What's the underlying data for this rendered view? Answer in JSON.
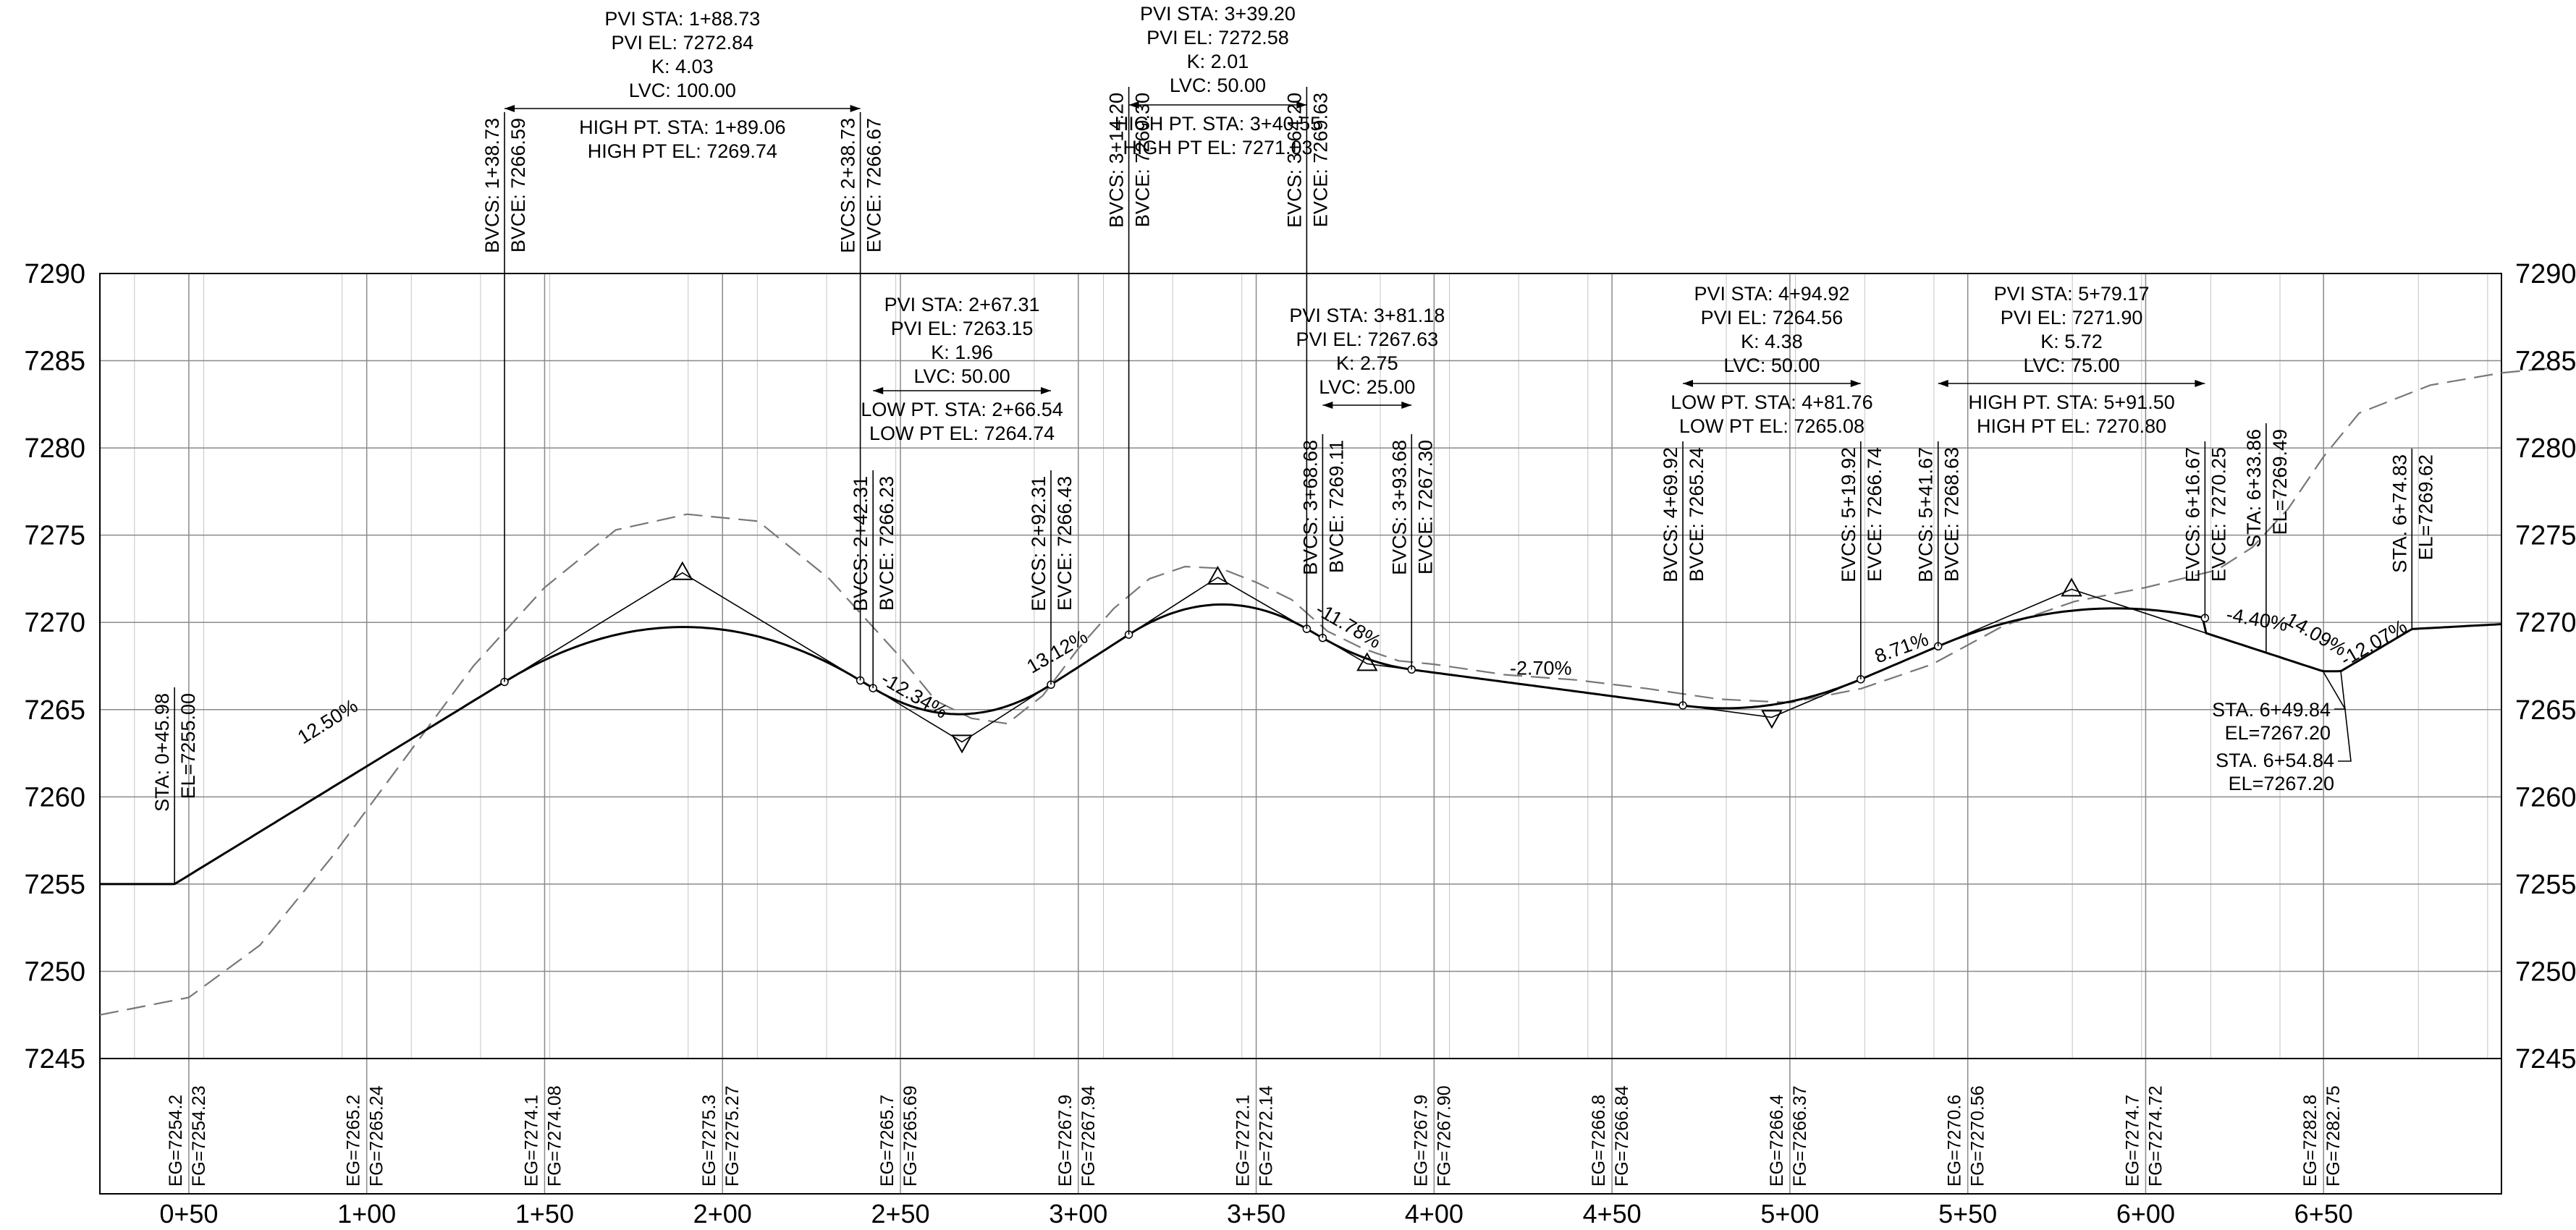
{
  "axes": {
    "y_ticks": [
      "7290",
      "7285",
      "7280",
      "7275",
      "7270",
      "7265",
      "7260",
      "7255",
      "7250",
      "7245"
    ],
    "x_ticks": [
      "0+50",
      "1+00",
      "1+50",
      "2+00",
      "2+50",
      "3+00",
      "3+50",
      "4+00",
      "4+50",
      "5+00",
      "5+50",
      "6+00",
      "6+50"
    ]
  },
  "chart_data": {
    "type": "line",
    "y_range": [
      7245,
      7290
    ],
    "x_range_sta": [
      25,
      372
    ],
    "series": [
      {
        "key": "fg_pvis",
        "points": [
          [
            25,
            7255.0
          ],
          [
            45.98,
            7255.0
          ],
          [
            188.73,
            7272.84
          ],
          [
            267.31,
            7263.15
          ],
          [
            339.2,
            7272.58
          ],
          [
            381.18,
            7267.63
          ],
          [
            494.92,
            7264.56
          ],
          [
            579.17,
            7271.9
          ],
          [
            649.84,
            7267.2
          ],
          [
            654.84,
            7267.2
          ],
          [
            674.83,
            7269.62
          ],
          [
            700,
            7269.9
          ]
        ]
      },
      {
        "key": "existing_ground",
        "points": [
          [
            25,
            7247.5
          ],
          [
            50,
            7248.5
          ],
          [
            70,
            7251.5
          ],
          [
            90,
            7256.5
          ],
          [
            110,
            7262.0
          ],
          [
            130,
            7267.5
          ],
          [
            150,
            7272.0
          ],
          [
            170,
            7275.3
          ],
          [
            190,
            7276.2
          ],
          [
            210,
            7275.8
          ],
          [
            230,
            7272.5
          ],
          [
            250,
            7268.0
          ],
          [
            260,
            7265.5
          ],
          [
            270,
            7264.5
          ],
          [
            280,
            7264.2
          ],
          [
            290,
            7265.8
          ],
          [
            300,
            7268.5
          ],
          [
            310,
            7270.8
          ],
          [
            320,
            7272.5
          ],
          [
            330,
            7273.2
          ],
          [
            340,
            7273.1
          ],
          [
            350,
            7272.3
          ],
          [
            360,
            7271.3
          ],
          [
            370,
            7269.5
          ],
          [
            380,
            7268.5
          ],
          [
            390,
            7267.8
          ],
          [
            400,
            7267.6
          ],
          [
            420,
            7267.0
          ],
          [
            440,
            7266.7
          ],
          [
            460,
            7266.2
          ],
          [
            480,
            7265.6
          ],
          [
            500,
            7265.4
          ],
          [
            520,
            7266.2
          ],
          [
            540,
            7267.6
          ],
          [
            560,
            7269.8
          ],
          [
            580,
            7271.2
          ],
          [
            600,
            7272.0
          ],
          [
            620,
            7273.0
          ],
          [
            630,
            7274.3
          ],
          [
            640,
            7276.5
          ],
          [
            650,
            7279.5
          ],
          [
            660,
            7282.0
          ],
          [
            680,
            7283.6
          ],
          [
            700,
            7284.3
          ],
          [
            715,
            7284.6
          ]
        ]
      }
    ],
    "vertical_curves": [
      {
        "type": "crest",
        "pvi_sta": 188.73,
        "pvi_el": 7272.84,
        "k": 4.03,
        "lvc": 100.0,
        "bvc_sta": 138.73,
        "bvc_el": 7266.59,
        "evc_sta": 238.73,
        "evc_el": 7266.67,
        "high_sta": 189.06,
        "high_el": 7269.74
      },
      {
        "type": "sag",
        "pvi_sta": 267.31,
        "pvi_el": 7263.15,
        "k": 1.96,
        "lvc": 50.0,
        "bvc_sta": 242.31,
        "bvc_el": 7266.23,
        "evc_sta": 292.31,
        "evc_el": 7266.43,
        "low_sta": 266.54,
        "low_el": 7264.74
      },
      {
        "type": "crest",
        "pvi_sta": 339.2,
        "pvi_el": 7272.58,
        "k": 2.01,
        "lvc": 50.0,
        "bvc_sta": 314.2,
        "bvc_el": 7269.3,
        "evc_sta": 364.2,
        "evc_el": 7269.63,
        "high_sta": 340.55,
        "high_el": 7271.03
      },
      {
        "type": "crest",
        "pvi_sta": 381.18,
        "pvi_el": 7267.63,
        "k": 2.75,
        "lvc": 25.0,
        "bvc_sta": 368.68,
        "bvc_el": 7269.11,
        "evc_sta": 393.68,
        "evc_el": 7267.3
      },
      {
        "type": "sag",
        "pvi_sta": 494.92,
        "pvi_el": 7264.56,
        "k": 4.38,
        "lvc": 50.0,
        "bvc_sta": 469.92,
        "bvc_el": 7265.24,
        "evc_sta": 519.92,
        "evc_el": 7266.74,
        "low_sta": 481.76,
        "low_el": 7265.08
      },
      {
        "type": "crest",
        "pvi_sta": 579.17,
        "pvi_el": 7271.9,
        "k": 5.72,
        "lvc": 75.0,
        "bvc_sta": 541.67,
        "bvc_el": 7268.63,
        "evc_sta": 616.67,
        "evc_el": 7270.25,
        "high_sta": 591.5,
        "high_el": 7270.8
      }
    ],
    "grades": [
      "12.50%",
      "-12.34%",
      "13.12%",
      "-11.78%",
      "-2.70%",
      "8.71%",
      "-4.40%",
      "14.09%",
      "-12.07%"
    ],
    "elevation_band": [
      {
        "sta": "0+50",
        "eg": "EG=7254.2",
        "fg": "FG=7254.23"
      },
      {
        "sta": "1+00",
        "eg": "EG=7265.2",
        "fg": "FG=7265.24"
      },
      {
        "sta": "1+50",
        "eg": "EG=7274.1",
        "fg": "FG=7274.08"
      },
      {
        "sta": "2+00",
        "eg": "EG=7275.3",
        "fg": "FG=7275.27"
      },
      {
        "sta": "2+50",
        "eg": "EG=7265.7",
        "fg": "FG=7265.69"
      },
      {
        "sta": "3+00",
        "eg": "EG=7267.9",
        "fg": "FG=7267.94"
      },
      {
        "sta": "3+50",
        "eg": "EG=7272.1",
        "fg": "FG=7272.14"
      },
      {
        "sta": "4+00",
        "eg": "EG=7267.9",
        "fg": "FG=7267.90"
      },
      {
        "sta": "4+50",
        "eg": "EG=7266.8",
        "fg": "FG=7266.84"
      },
      {
        "sta": "5+00",
        "eg": "EG=7266.4",
        "fg": "FG=7266.37"
      },
      {
        "sta": "5+50",
        "eg": "EG=7270.6",
        "fg": "FG=7270.56"
      },
      {
        "sta": "6+00",
        "eg": "EG=7274.7",
        "fg": "FG=7274.72"
      },
      {
        "sta": "6+50",
        "eg": "EG=7282.8",
        "fg": "FG=7282.75"
      }
    ]
  },
  "labels": {
    "pvi1": [
      "PVI STA: 1+88.73",
      "PVI EL: 7272.84",
      "K: 4.03",
      "LVC: 100.00",
      "HIGH PT. STA: 1+89.06",
      "HIGH PT EL: 7269.74"
    ],
    "pvi2": [
      "PVI STA: 2+67.31",
      "PVI EL: 7263.15",
      "K: 1.96",
      "LVC: 50.00",
      "LOW PT. STA: 2+66.54",
      "LOW PT EL: 7264.74"
    ],
    "pvi3": [
      "PVI STA: 3+39.20",
      "PVI EL: 7272.58",
      "K: 2.01",
      "LVC: 50.00",
      "HIGH PT. STA: 3+40.55",
      "HIGH PT EL: 7271.03"
    ],
    "pvi4": [
      "PVI STA: 3+81.18",
      "PVI EL: 7267.63",
      "K: 2.75",
      "LVC: 25.00"
    ],
    "pvi5": [
      "PVI STA: 4+94.92",
      "PVI EL: 7264.56",
      "K: 4.38",
      "LVC: 50.00",
      "LOW PT. STA: 4+81.76",
      "LOW PT EL: 7265.08"
    ],
    "pvi6": [
      "PVI STA: 5+79.17",
      "PVI EL: 7271.90",
      "K: 5.72",
      "LVC: 75.00",
      "HIGH PT. STA: 5+91.50",
      "HIGH PT EL: 7270.80"
    ],
    "vc_points": {
      "bvc1": [
        "BVCS: 1+38.73",
        "BVCE: 7266.59"
      ],
      "evc1": [
        "EVCS: 2+38.73",
        "EVCE: 7266.67"
      ],
      "bvc2": [
        "BVCS: 2+42.31",
        "BVCE: 7266.23"
      ],
      "evc2": [
        "EVCS: 2+92.31",
        "EVCE: 7266.43"
      ],
      "bvc3": [
        "BVCS: 3+14.20",
        "BVCE: 7269.30"
      ],
      "evc3": [
        "EVCS: 3+64.20",
        "EVCE: 7269.63"
      ],
      "bvc4": [
        "BVCS: 3+68.68",
        "BVCE: 7269.11"
      ],
      "evc4": [
        "EVCS: 3+93.68",
        "EVCE: 7267.30"
      ],
      "bvc5": [
        "BVCS: 4+69.92",
        "BVCE: 7265.24"
      ],
      "evc5": [
        "EVCS: 5+19.92",
        "EVCE: 7266.74"
      ],
      "bvc6": [
        "BVCS: 5+41.67",
        "BVCE: 7268.63"
      ],
      "evc6": [
        "EVCS: 6+16.67",
        "EVCE: 7270.25"
      ],
      "sta1": [
        "STA: 0+45.98",
        "EL=7255.00"
      ],
      "sta2": [
        "STA: 6+33.86",
        "EL=7269.49"
      ],
      "sta3": [
        "STA. 6+74.83",
        "EL=7269.62"
      ]
    },
    "callouts": {
      "sta_649": [
        "STA. 6+49.84",
        "EL=7267.20"
      ],
      "sta_654": [
        "STA. 6+54.84",
        "EL=7267.20"
      ]
    }
  }
}
